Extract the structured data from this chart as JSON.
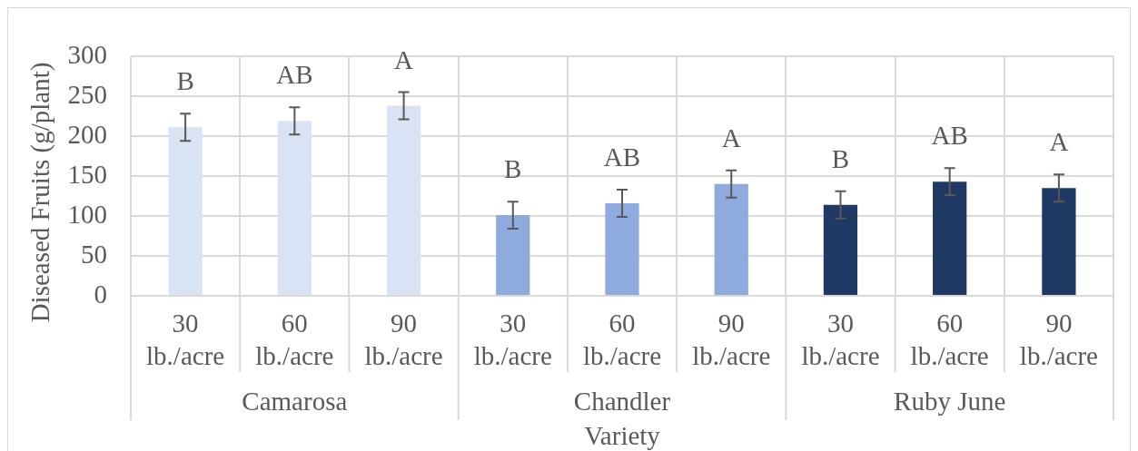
{
  "chart_data": {
    "type": "bar",
    "xlabel": "Variety",
    "ylabel": "Diseased Fruits (g/plant)",
    "categories": [
      "30 lb./acre",
      "60 lb./acre",
      "90 lb./acre",
      "30 lb./acre",
      "60 lb./acre",
      "90 lb./acre",
      "30 lb./acre",
      "60 lb./acre",
      "90 lb./acre"
    ],
    "series": [
      {
        "color": "#dae3f3",
        "values": [
          211,
          219,
          238,
          null,
          null,
          null,
          null,
          null,
          null
        ],
        "errors": [
          17,
          17,
          17,
          null,
          null,
          null,
          null,
          null,
          null
        ],
        "value_labels": [
          "B",
          "AB",
          "A",
          null,
          null,
          null,
          null,
          null,
          null
        ]
      },
      {
        "color": "#8faadc",
        "values": [
          null,
          null,
          null,
          101,
          116,
          140,
          null,
          null,
          null
        ],
        "errors": [
          null,
          null,
          null,
          17,
          17,
          17,
          null,
          null,
          null
        ],
        "value_labels": [
          null,
          null,
          null,
          "B",
          "AB",
          "A",
          null,
          null,
          null
        ]
      },
      {
        "color": "#203864",
        "values": [
          null,
          null,
          null,
          null,
          null,
          null,
          114,
          143,
          135
        ],
        "errors": [
          null,
          null,
          null,
          null,
          null,
          null,
          17,
          17,
          17
        ],
        "value_labels": [
          null,
          null,
          null,
          null,
          null,
          null,
          "B",
          "AB",
          "A"
        ]
      }
    ],
    "annotations": [
      "Camarosa",
      "Chandler",
      "Ruby June"
    ],
    "ylim": [
      0,
      300
    ],
    "yticks": [
      0,
      50,
      100,
      150,
      200,
      250,
      300
    ],
    "grid": true
  }
}
